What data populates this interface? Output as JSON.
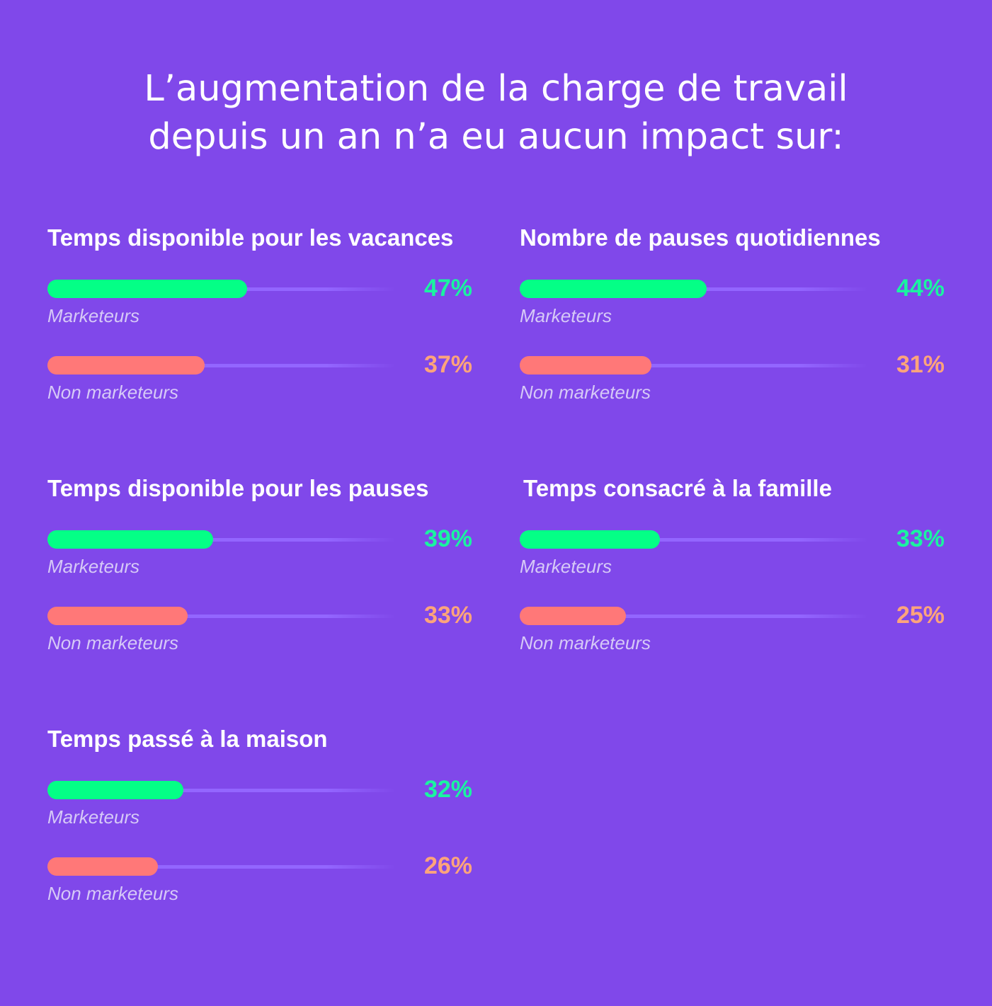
{
  "title_lines": [
    "L’augmentation de la charge de travail",
    "depuis un an n’a eu aucun impact sur:"
  ],
  "colors": {
    "background": "#8048EA",
    "marketeurs_bar": "#04FF86",
    "marketeurs_value": "#1AF4A0",
    "non_marketeurs_bar": "#FF7878",
    "non_marketeurs_value": "#FFA47B",
    "track": "#9366FF",
    "label": "#D6C9F7"
  },
  "chart_data": {
    "type": "bar",
    "orientation": "horizontal",
    "title": "L’augmentation de la charge de travail depuis un an n’a eu aucun impact sur:",
    "unit": "%",
    "xlim": [
      0,
      100
    ],
    "grid": false,
    "series_names": [
      "Marketeurs",
      "Non marketeurs"
    ],
    "panels": [
      {
        "title": "Temps disponible pour les vacances",
        "series": [
          {
            "name": "Marketeurs",
            "value": 47,
            "label": "47%"
          },
          {
            "name": "Non marketeurs",
            "value": 37,
            "label": "37%"
          }
        ]
      },
      {
        "title": "Nombre de pauses quotidiennes",
        "series": [
          {
            "name": "Marketeurs",
            "value": 44,
            "label": "44%"
          },
          {
            "name": "Non marketeurs",
            "value": 31,
            "label": "31%"
          }
        ]
      },
      {
        "title": "Temps disponible pour les pauses",
        "series": [
          {
            "name": "Marketeurs",
            "value": 39,
            "label": "39%"
          },
          {
            "name": "Non marketeurs",
            "value": 33,
            "label": "33%"
          }
        ]
      },
      {
        "title": "Temps consacré à la famille",
        "series": [
          {
            "name": "Marketeurs",
            "value": 33,
            "label": "33%"
          },
          {
            "name": "Non marketeurs",
            "value": 25,
            "label": "25%"
          }
        ]
      },
      {
        "title": "Temps passé à la maison",
        "series": [
          {
            "name": "Marketeurs",
            "value": 32,
            "label": "32%"
          },
          {
            "name": "Non marketeurs",
            "value": 26,
            "label": "26%"
          }
        ]
      }
    ]
  }
}
